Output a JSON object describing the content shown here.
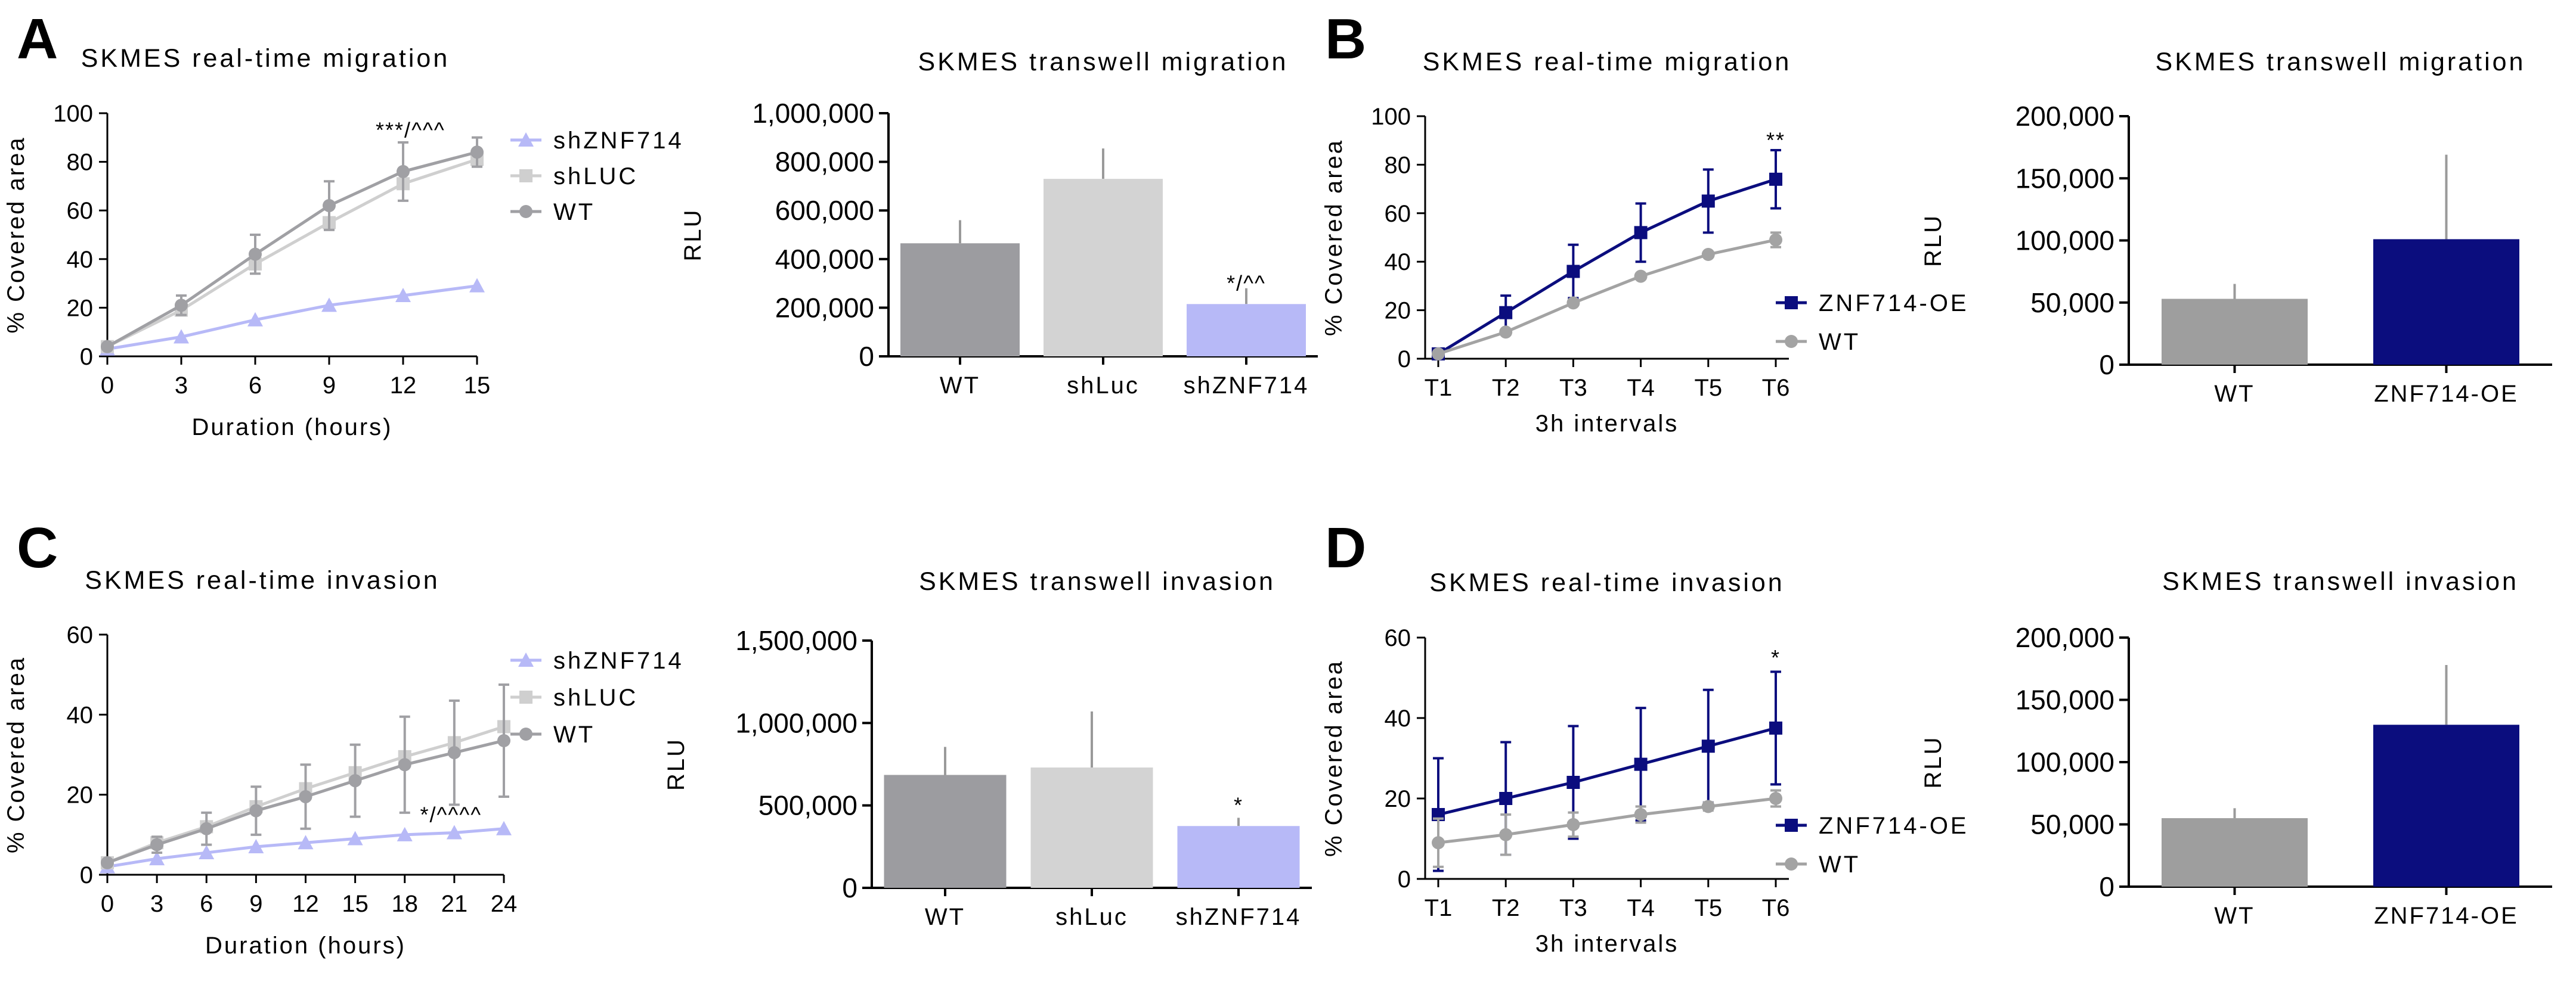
{
  "panel_labels": [
    "A",
    "B",
    "C",
    "D"
  ],
  "colors": {
    "wt_dark": "#a0a0a4",
    "wt_grey": "#9e9e9e",
    "shluc": "#cfcfcf",
    "shznf": "#b7b9f7",
    "oe": "#0b0d7e",
    "err": "#9a9a9a"
  },
  "chart_data": [
    {
      "id": "a_line",
      "panel": "A",
      "type": "line",
      "title": "SKMES real-time migration",
      "xlabel": "Duration (hours)",
      "ylabel": "% Covered area",
      "x": [
        0,
        3,
        6,
        9,
        12,
        15
      ],
      "xlim": [
        0,
        15
      ],
      "ylim": [
        0,
        100
      ],
      "yticks": [
        0,
        20,
        40,
        60,
        80,
        100
      ],
      "series": [
        {
          "name": "shZNF714",
          "color": "#b7b9f7",
          "marker": "triangle",
          "values": [
            3,
            8,
            15,
            21,
            25,
            29
          ],
          "err": [
            0,
            0,
            0,
            0,
            0,
            0
          ]
        },
        {
          "name": "shLUC",
          "color": "#cfcfcf",
          "marker": "square",
          "values": [
            4,
            19,
            38,
            55,
            71,
            81
          ],
          "err": [
            0,
            0,
            0,
            0,
            0,
            0
          ]
        },
        {
          "name": "WT",
          "color": "#a0a0a4",
          "marker": "circle",
          "values": [
            4,
            21,
            42,
            62,
            76,
            84
          ],
          "err": [
            0,
            4,
            8,
            10,
            12,
            6
          ]
        }
      ],
      "annotations": [
        {
          "text": "***/^^^",
          "x": 12.3,
          "y": 93
        }
      ]
    },
    {
      "id": "a_bar",
      "panel": "A",
      "type": "bar",
      "title": "SKMES transwell migration",
      "ylabel": "RLU",
      "categories": [
        "WT",
        "shLuc",
        "shZNF714"
      ],
      "values": [
        465000,
        730000,
        215000
      ],
      "err": [
        95000,
        125000,
        65000
      ],
      "colors": [
        "#9c9ca0",
        "#d3d3d3",
        "#b7b9f7"
      ],
      "ylim": [
        0,
        1000000
      ],
      "yticks": [
        0,
        200000,
        400000,
        600000,
        800000,
        1000000
      ],
      "ytick_labels": [
        "0",
        "200,000",
        "400,000",
        "600,000",
        "800,000",
        "1,000,000"
      ],
      "annotations": [
        {
          "text": "*/^^",
          "cat": 2,
          "y": 300000
        }
      ]
    },
    {
      "id": "b_line",
      "panel": "B",
      "type": "line",
      "title": "SKMES real-time migration",
      "xlabel": "3h intervals",
      "ylabel": "% Covered area",
      "categories": [
        "T1",
        "T2",
        "T3",
        "T4",
        "T5",
        "T6"
      ],
      "ylim": [
        0,
        100
      ],
      "yticks": [
        0,
        20,
        40,
        60,
        80,
        100
      ],
      "series": [
        {
          "name": "ZNF714-OE",
          "color": "#0b0d7e",
          "marker": "square",
          "values": [
            2,
            19,
            36,
            52,
            65,
            74
          ],
          "err": [
            0,
            7,
            11,
            12,
            13,
            12
          ]
        },
        {
          "name": "WT",
          "color": "#a3a3a3",
          "marker": "circle",
          "values": [
            2,
            11,
            23,
            34,
            43,
            49
          ],
          "err": [
            0,
            0,
            0,
            0,
            0,
            3
          ]
        }
      ],
      "annotations": [
        {
          "text": "**",
          "cat": 5,
          "y": 90
        }
      ]
    },
    {
      "id": "b_bar",
      "panel": "B",
      "type": "bar",
      "title": "SKMES transwell migration",
      "ylabel": "RLU",
      "categories": [
        "WT",
        "ZNF714-OE"
      ],
      "values": [
        53000,
        101000
      ],
      "err": [
        12000,
        68000
      ],
      "colors": [
        "#9e9e9e",
        "#0b0d7e"
      ],
      "ylim": [
        0,
        200000
      ],
      "yticks": [
        0,
        50000,
        100000,
        150000,
        200000
      ],
      "ytick_labels": [
        "0",
        "50,000",
        "100,000",
        "150,000",
        "200,000"
      ],
      "annotations": []
    },
    {
      "id": "c_line",
      "panel": "C",
      "type": "line",
      "title": "SKMES real-time invasion",
      "xlabel": "Duration (hours)",
      "ylabel": "% Covered area",
      "x": [
        0,
        3,
        6,
        9,
        12,
        15,
        18,
        21,
        24
      ],
      "xlim": [
        0,
        24
      ],
      "ylim": [
        0,
        60
      ],
      "yticks": [
        0,
        20,
        40,
        60
      ],
      "series": [
        {
          "name": "shZNF714",
          "color": "#b7b9f7",
          "marker": "triangle",
          "values": [
            2,
            4,
            5.5,
            7,
            8,
            9,
            10,
            10.5,
            11.5
          ],
          "err": [
            0,
            0,
            0,
            0,
            0,
            0,
            0,
            0,
            0
          ]
        },
        {
          "name": "shLUC",
          "color": "#cfcfcf",
          "marker": "square",
          "values": [
            3,
            8,
            12,
            17,
            21.5,
            25.5,
            29.5,
            33,
            37
          ],
          "err": [
            0,
            0,
            0,
            0,
            0,
            0,
            0,
            0,
            0
          ]
        },
        {
          "name": "WT",
          "color": "#a0a0a4",
          "marker": "circle",
          "values": [
            3,
            7.5,
            11.5,
            16,
            19.5,
            23.5,
            27.5,
            30.5,
            33.5
          ],
          "err": [
            0,
            2,
            4,
            6,
            8,
            9,
            12,
            13,
            14
          ]
        }
      ],
      "annotations": [
        {
          "text": "*/^^^^",
          "x": 20.8,
          "y": 15
        }
      ]
    },
    {
      "id": "c_bar",
      "panel": "C",
      "type": "bar",
      "title": "SKMES transwell invasion",
      "ylabel": "RLU",
      "categories": [
        "WT",
        "shLuc",
        "shZNF714"
      ],
      "values": [
        685000,
        730000,
        375000
      ],
      "err": [
        170000,
        340000,
        50000
      ],
      "colors": [
        "#9c9ca0",
        "#d3d3d3",
        "#b7b9f7"
      ],
      "ylim": [
        0,
        1500000
      ],
      "yticks": [
        0,
        500000,
        1000000,
        1500000
      ],
      "ytick_labels": [
        "0",
        "500,000",
        "1,000,000",
        "1,500,000"
      ],
      "annotations": [
        {
          "text": "*",
          "cat": 2,
          "y": 500000
        }
      ]
    },
    {
      "id": "d_line",
      "panel": "D",
      "type": "line",
      "title": "SKMES real-time invasion",
      "xlabel": "3h intervals",
      "ylabel": "% Covered area",
      "categories": [
        "T1",
        "T2",
        "T3",
        "T4",
        "T5",
        "T6"
      ],
      "ylim": [
        0,
        60
      ],
      "yticks": [
        0,
        20,
        40,
        60
      ],
      "series": [
        {
          "name": "ZNF714-OE",
          "color": "#0b0d7e",
          "marker": "square",
          "values": [
            16,
            20,
            24,
            28.5,
            33,
            37.5
          ],
          "err": [
            14,
            14,
            14,
            14,
            14,
            14
          ]
        },
        {
          "name": "WT",
          "color": "#a3a3a3",
          "marker": "circle",
          "values": [
            9,
            11,
            13.5,
            16,
            18,
            20
          ],
          "err": [
            6,
            5,
            3,
            2,
            1,
            2
          ]
        }
      ],
      "annotations": [
        {
          "text": "*",
          "cat": 5,
          "y": 55
        }
      ]
    },
    {
      "id": "d_bar",
      "panel": "D",
      "type": "bar",
      "title": "SKMES transwell invasion",
      "ylabel": "RLU",
      "categories": [
        "WT",
        "ZNF714-OE"
      ],
      "values": [
        55000,
        130000
      ],
      "err": [
        8000,
        48000
      ],
      "colors": [
        "#9e9e9e",
        "#0b0d7e"
      ],
      "ylim": [
        0,
        200000
      ],
      "yticks": [
        0,
        50000,
        100000,
        150000,
        200000
      ],
      "ytick_labels": [
        "0",
        "50,000",
        "100,000",
        "150,000",
        "200,000"
      ],
      "annotations": []
    }
  ]
}
